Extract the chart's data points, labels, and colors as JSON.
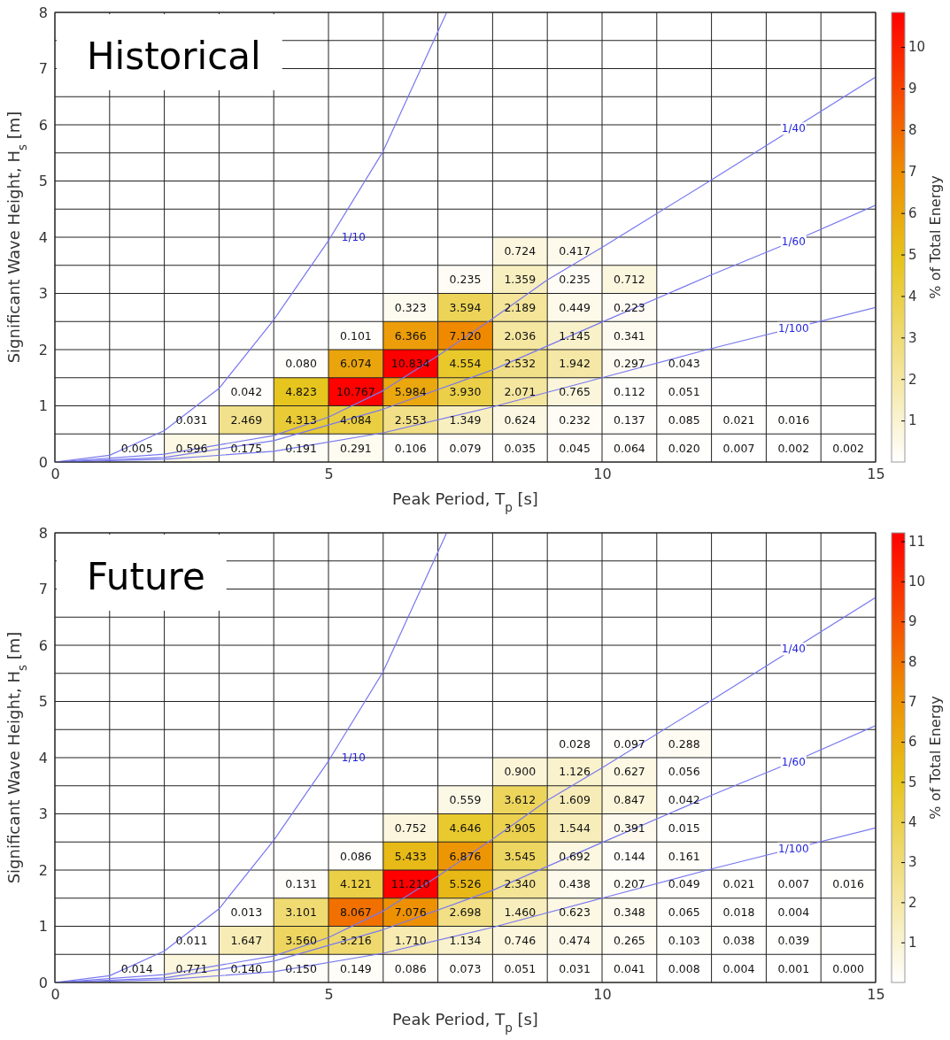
{
  "chart_data": [
    {
      "type": "heatmap",
      "title": "Historical",
      "xlabel": "Peak Period,  T$_{p}$ [s]",
      "ylabel": "Significant Wave Height,  H$_{s}$ [m]",
      "clabel": "% of Total Energy",
      "x": [
        0.5,
        1.5,
        2.5,
        3.5,
        4.5,
        5.5,
        6.5,
        7.5,
        8.5,
        9.5,
        10.5,
        11.5,
        12.5,
        13.5,
        14.5
      ],
      "y": [
        3.75,
        3.25,
        2.75,
        2.25,
        1.75,
        1.25,
        0.75,
        0.25
      ],
      "xlim": [
        0,
        15
      ],
      "xticks": [
        0,
        5,
        10,
        15
      ],
      "ylim": [
        0,
        8
      ],
      "yticks": [
        0,
        1,
        2,
        3,
        4,
        5,
        6,
        7,
        8
      ],
      "clim": [
        0,
        10.834
      ],
      "cticks": [
        1,
        2,
        3,
        4,
        5,
        6,
        7,
        8,
        9,
        10
      ],
      "grid": true,
      "cell_labels": [
        [
          null,
          null,
          null,
          null,
          null,
          null,
          null,
          null,
          "0.724",
          "0.417",
          null,
          null,
          null,
          null,
          null
        ],
        [
          null,
          null,
          null,
          null,
          null,
          null,
          null,
          "0.235",
          "1.359",
          "0.235",
          "0.712",
          null,
          null,
          null,
          null
        ],
        [
          null,
          null,
          null,
          null,
          null,
          null,
          "0.323",
          "3.594",
          "2.189",
          "0.449",
          "0.223",
          null,
          null,
          null,
          null
        ],
        [
          null,
          null,
          null,
          null,
          null,
          "0.101",
          "6.366",
          "7.120",
          "2.036",
          "1.145",
          "0.341",
          null,
          null,
          null,
          null
        ],
        [
          null,
          null,
          null,
          null,
          "0.080",
          "6.074",
          "10.834",
          "4.554",
          "2.532",
          "1.942",
          "0.297",
          "0.043",
          null,
          null,
          null
        ],
        [
          null,
          null,
          null,
          "0.042",
          "4.823",
          "10.767",
          "5.984",
          "3.930",
          "2.071",
          "0.765",
          "0.112",
          "0.051",
          null,
          null,
          null
        ],
        [
          null,
          null,
          "0.031",
          "2.469",
          "4.313",
          "4.084",
          "2.553",
          "1.349",
          "0.624",
          "0.232",
          "0.137",
          "0.085",
          "0.021",
          "0.016",
          null
        ],
        [
          null,
          "0.005",
          "0.596",
          "0.175",
          "0.191",
          "0.291",
          "0.106",
          "0.079",
          "0.035",
          "0.045",
          "0.064",
          "0.020",
          "0.007",
          "0.002",
          "0.002"
        ]
      ],
      "cells": [
        [
          null,
          null,
          null,
          null,
          null,
          null,
          null,
          null,
          0.724,
          0.417,
          null,
          null,
          null,
          null,
          null
        ],
        [
          null,
          null,
          null,
          null,
          null,
          null,
          null,
          0.235,
          1.359,
          0.235,
          0.712,
          null,
          null,
          null,
          null
        ],
        [
          null,
          null,
          null,
          null,
          null,
          null,
          0.323,
          3.594,
          2.189,
          0.449,
          0.223,
          null,
          null,
          null,
          null
        ],
        [
          null,
          null,
          null,
          null,
          null,
          0.101,
          6.366,
          7.12,
          2.036,
          1.145,
          0.341,
          null,
          null,
          null,
          null
        ],
        [
          null,
          null,
          null,
          null,
          0.08,
          6.074,
          10.834,
          4.554,
          2.532,
          1.942,
          0.297,
          0.043,
          null,
          null,
          null
        ],
        [
          null,
          null,
          null,
          0.042,
          4.823,
          10.767,
          5.984,
          3.93,
          2.071,
          0.765,
          0.112,
          0.051,
          null,
          null,
          null
        ],
        [
          null,
          null,
          0.031,
          2.469,
          4.313,
          4.084,
          2.553,
          1.349,
          0.624,
          0.232,
          0.137,
          0.085,
          0.021,
          0.016,
          null
        ],
        [
          null,
          0.005,
          0.596,
          0.175,
          0.191,
          0.291,
          0.106,
          0.079,
          0.035,
          0.045,
          0.064,
          0.02,
          0.007,
          0.002,
          0.002
        ]
      ],
      "series": [
        {
          "type": "line",
          "name": "1/10",
          "color": "#7878f0",
          "x": [
            0,
            1,
            2,
            3,
            4,
            5,
            6,
            7.16
          ],
          "values": [
            0,
            0.12,
            0.56,
            1.31,
            2.53,
            3.94,
            5.53,
            8
          ]
        },
        {
          "type": "line",
          "name": "1/40",
          "color": "#7878f0",
          "x": [
            0,
            2,
            4,
            5,
            6,
            7,
            8,
            9,
            10,
            12,
            15
          ],
          "values": [
            0,
            0.14,
            0.47,
            0.8,
            1.27,
            1.89,
            2.55,
            3.24,
            3.82,
            5.02,
            6.85
          ]
        },
        {
          "type": "line",
          "name": "1/60",
          "color": "#7878f0",
          "x": [
            0,
            2,
            4,
            6,
            8,
            10,
            12,
            13.67,
            15
          ],
          "values": [
            0,
            0.08,
            0.38,
            0.94,
            1.64,
            2.49,
            3.33,
            4.0,
            4.57
          ]
        },
        {
          "type": "line",
          "name": "1/100",
          "color": "#7878f0",
          "x": [
            0,
            2,
            4,
            6,
            8,
            10,
            12,
            15
          ],
          "values": [
            0,
            0.05,
            0.19,
            0.52,
            0.98,
            1.5,
            2.02,
            2.75
          ]
        }
      ]
    },
    {
      "type": "heatmap",
      "title": "Future",
      "xlabel": "Peak Period,  T$_{p}$ [s]",
      "ylabel": "Significant Wave Height,  H$_{s}$ [m]",
      "clabel": "% of Total Energy",
      "x": [
        0.5,
        1.5,
        2.5,
        3.5,
        4.5,
        5.5,
        6.5,
        7.5,
        8.5,
        9.5,
        10.5,
        11.5,
        12.5,
        13.5,
        14.5
      ],
      "y": [
        4.25,
        3.75,
        3.25,
        2.75,
        2.25,
        1.75,
        1.25,
        0.75,
        0.25
      ],
      "xlim": [
        0,
        15
      ],
      "xticks": [
        0,
        5,
        10,
        15
      ],
      "ylim": [
        0,
        8
      ],
      "yticks": [
        0,
        1,
        2,
        3,
        4,
        5,
        6,
        7,
        8
      ],
      "clim": [
        0,
        11.21
      ],
      "cticks": [
        1,
        2,
        3,
        4,
        5,
        6,
        7,
        8,
        9,
        10,
        11
      ],
      "grid": true,
      "cell_labels": [
        [
          null,
          null,
          null,
          null,
          null,
          null,
          null,
          null,
          null,
          "0.028",
          "0.097",
          "0.288",
          null,
          null,
          null
        ],
        [
          null,
          null,
          null,
          null,
          null,
          null,
          null,
          null,
          "0.900",
          "1.126",
          "0.627",
          "0.056",
          null,
          null,
          null
        ],
        [
          null,
          null,
          null,
          null,
          null,
          null,
          null,
          "0.559",
          "3.612",
          "1.609",
          "0.847",
          "0.042",
          null,
          null,
          null
        ],
        [
          null,
          null,
          null,
          null,
          null,
          null,
          "0.752",
          "4.646",
          "3.905",
          "1.544",
          "0.391",
          "0.015",
          null,
          null,
          null
        ],
        [
          null,
          null,
          null,
          null,
          null,
          "0.086",
          "5.433",
          "6.876",
          "3.545",
          "0.692",
          "0.144",
          "0.161",
          null,
          null,
          null
        ],
        [
          null,
          null,
          null,
          null,
          "0.131",
          "4.121",
          "11.210",
          "5.526",
          "2.340",
          "0.438",
          "0.207",
          "0.049",
          "0.021",
          "0.007",
          "0.016"
        ],
        [
          null,
          null,
          null,
          "0.013",
          "3.101",
          "8.067",
          "7.076",
          "2.698",
          "1.460",
          "0.623",
          "0.348",
          "0.065",
          "0.018",
          "0.004",
          null
        ],
        [
          null,
          null,
          "0.011",
          "1.647",
          "3.560",
          "3.216",
          "1.710",
          "1.134",
          "0.746",
          "0.474",
          "0.265",
          "0.103",
          "0.038",
          "0.039",
          null
        ],
        [
          null,
          "0.014",
          "0.771",
          "0.140",
          "0.150",
          "0.149",
          "0.086",
          "0.073",
          "0.051",
          "0.031",
          "0.041",
          "0.008",
          "0.004",
          "0.001",
          "0.000"
        ]
      ],
      "cells": [
        [
          null,
          null,
          null,
          null,
          null,
          null,
          null,
          null,
          null,
          0.028,
          0.097,
          0.288,
          null,
          null,
          null
        ],
        [
          null,
          null,
          null,
          null,
          null,
          null,
          null,
          null,
          0.9,
          1.126,
          0.627,
          0.056,
          null,
          null,
          null
        ],
        [
          null,
          null,
          null,
          null,
          null,
          null,
          null,
          0.559,
          3.612,
          1.609,
          0.847,
          0.042,
          null,
          null,
          null
        ],
        [
          null,
          null,
          null,
          null,
          null,
          null,
          0.752,
          4.646,
          3.905,
          1.544,
          0.391,
          0.015,
          null,
          null,
          null
        ],
        [
          null,
          null,
          null,
          null,
          null,
          0.086,
          5.433,
          6.876,
          3.545,
          0.692,
          0.144,
          0.161,
          null,
          null,
          null
        ],
        [
          null,
          null,
          null,
          null,
          0.131,
          4.121,
          11.21,
          5.526,
          2.34,
          0.438,
          0.207,
          0.049,
          0.021,
          0.007,
          0.016
        ],
        [
          null,
          null,
          null,
          0.013,
          3.101,
          8.067,
          7.076,
          2.698,
          1.46,
          0.623,
          0.348,
          0.065,
          0.018,
          0.004,
          null
        ],
        [
          null,
          null,
          0.011,
          1.647,
          3.56,
          3.216,
          1.71,
          1.134,
          0.746,
          0.474,
          0.265,
          0.103,
          0.038,
          0.039,
          null
        ],
        [
          null,
          0.014,
          0.771,
          0.14,
          0.15,
          0.149,
          0.086,
          0.073,
          0.051,
          0.031,
          0.041,
          0.008,
          0.004,
          0.001,
          0.0
        ]
      ],
      "series": [
        {
          "type": "line",
          "name": "1/10",
          "color": "#7878f0",
          "x": [
            0,
            1,
            2,
            3,
            4,
            5,
            6,
            7.16
          ],
          "values": [
            0,
            0.12,
            0.56,
            1.31,
            2.53,
            3.94,
            5.53,
            8
          ]
        },
        {
          "type": "line",
          "name": "1/40",
          "color": "#7878f0",
          "x": [
            0,
            2,
            4,
            5,
            6,
            7,
            8,
            9,
            10,
            12,
            15
          ],
          "values": [
            0,
            0.14,
            0.47,
            0.8,
            1.27,
            1.89,
            2.55,
            3.24,
            3.82,
            5.02,
            6.85
          ]
        },
        {
          "type": "line",
          "name": "1/60",
          "color": "#7878f0",
          "x": [
            0,
            2,
            4,
            6,
            8,
            10,
            12,
            13.67,
            15
          ],
          "values": [
            0,
            0.08,
            0.38,
            0.94,
            1.64,
            2.49,
            3.33,
            4.0,
            4.57
          ]
        },
        {
          "type": "line",
          "name": "1/100",
          "color": "#7878f0",
          "x": [
            0,
            2,
            4,
            6,
            8,
            10,
            12,
            15
          ],
          "values": [
            0,
            0.05,
            0.19,
            0.52,
            0.98,
            1.5,
            2.02,
            2.75
          ]
        }
      ]
    }
  ]
}
